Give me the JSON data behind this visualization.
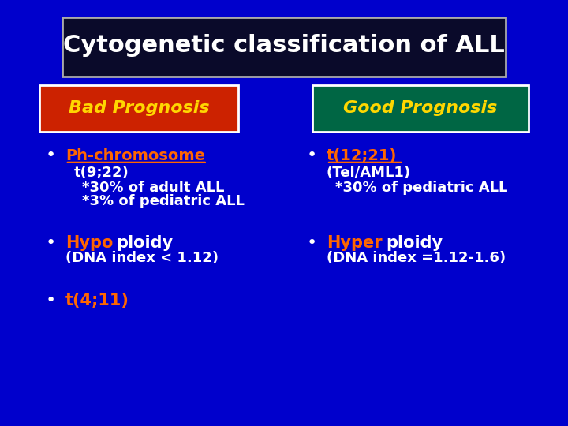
{
  "background_color": "#0000CC",
  "title_box_bg": "#0A0A2A",
  "title_box_edge": "#AAAAAA",
  "title_text": "Cytogenetic classification of ALL",
  "title_color": "#FFFFFF",
  "title_fontsize": 22,
  "bad_box_bg": "#CC2200",
  "bad_box_edge": "#FFFFFF",
  "bad_label": "Bad Prognosis",
  "bad_label_color": "#FFD700",
  "good_box_bg": "#006644",
  "good_box_edge": "#FFFFFF",
  "good_label": "Good Prognosis",
  "good_label_color": "#FFD700",
  "orange_color": "#FF6600",
  "white_color": "#FFFFFF",
  "bullet_fontsize": 14,
  "sub_fontsize": 13
}
